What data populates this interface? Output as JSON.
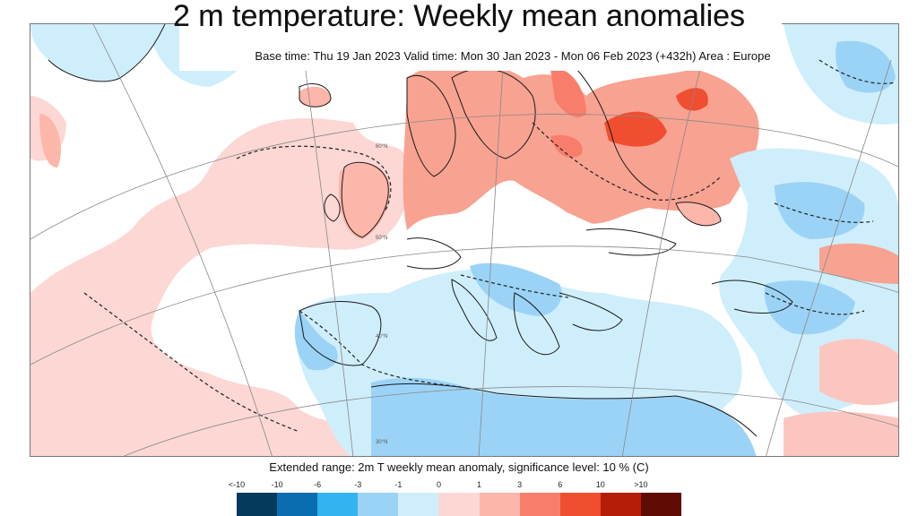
{
  "header": {
    "title": "2 m temperature: Weekly mean anomalies",
    "subtitle": "Base time: Thu 19 Jan 2023 Valid time: Mon 30 Jan 2023 - Mon 06 Feb 2023 (+432h) Area : Europe"
  },
  "footer": {
    "caption": "Extended range: 2m T weekly mean anomaly, significance level: 10 % (C)"
  },
  "map": {
    "area": "Europe",
    "lat_labels": [
      "60°N",
      "50°N",
      "40°N",
      "30°N"
    ]
  },
  "legend": {
    "labels": [
      "<-10",
      "-10",
      "-6",
      "-3",
      "-1",
      "0",
      "1",
      "3",
      "6",
      "10",
      ">10"
    ],
    "colors": [
      "#053a5c",
      "#0a6db0",
      "#33b4f0",
      "#9bd3f6",
      "#cfeefb",
      "#fcd7d4",
      "#fcb6aa",
      "#f87e6b",
      "#f04e30",
      "#b51d09",
      "#5f0c05"
    ]
  },
  "colors": {
    "strong_red": "#f87e6b",
    "light_red": "#fcc6c0",
    "light_blue": "#cfeefb",
    "mid_blue": "#9bd3f6",
    "coast": "#1a1a1a",
    "grid": "#888888"
  }
}
